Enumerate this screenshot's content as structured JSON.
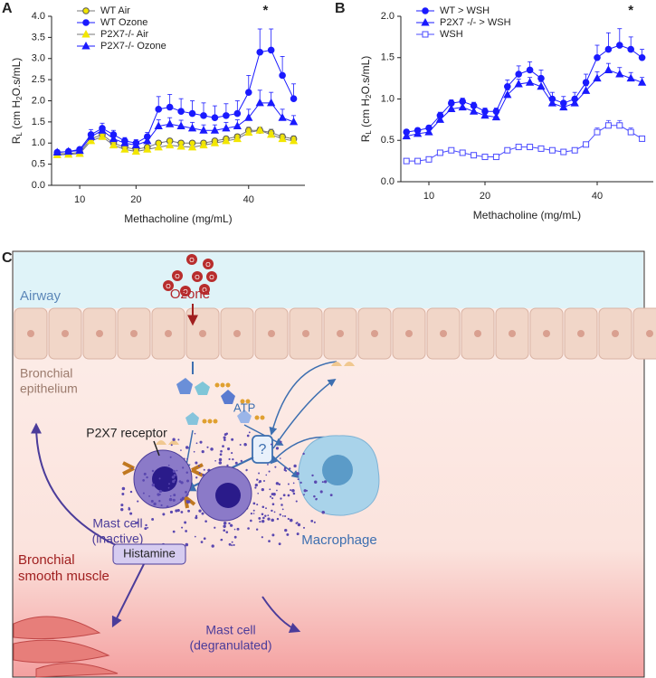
{
  "panels": [
    "A",
    "B",
    "C"
  ],
  "chart_data": [
    {
      "type": "line",
      "xlabel": "Methacholine (mg/mL)",
      "ylabel_parts": [
        "R",
        "L",
        " (cm H",
        "2",
        "O.s/mL)"
      ],
      "x": [
        6,
        8,
        10,
        12,
        14,
        16,
        18,
        20,
        22,
        24,
        26,
        28,
        30,
        32,
        34,
        36,
        38,
        40,
        42,
        44,
        46,
        48
      ],
      "xlim": [
        5,
        50
      ],
      "xticks": [
        10,
        20,
        40
      ],
      "ylim": [
        0,
        4
      ],
      "yticks": [
        {
          "value": 0,
          "label": "0.0"
        },
        0.5,
        {
          "value": 1,
          "label": "1.0"
        },
        1.5,
        {
          "value": 2,
          "label": "2.0"
        },
        2.5,
        {
          "value": 3,
          "label": "3.0"
        },
        3.5,
        {
          "value": 4,
          "label": "4.0"
        }
      ],
      "legend": "upper left",
      "annotations": [
        {
          "text": "*",
          "x": 43
        }
      ],
      "series": [
        {
          "name": "WT Air",
          "color": "#f2e600",
          "marker": "circle",
          "filled": true,
          "values": [
            0.75,
            0.75,
            0.78,
            1.1,
            1.2,
            1.0,
            0.9,
            0.85,
            0.9,
            1.0,
            1.05,
            1.0,
            1.0,
            1.0,
            1.05,
            1.1,
            1.15,
            1.3,
            1.3,
            1.25,
            1.15,
            1.1
          ],
          "errors": [
            0.04,
            0.04,
            0.04,
            0.08,
            0.08,
            0.06,
            0.05,
            0.05,
            0.05,
            0.06,
            0.06,
            0.06,
            0.06,
            0.06,
            0.06,
            0.06,
            0.06,
            0.08,
            0.08,
            0.08,
            0.07,
            0.07
          ]
        },
        {
          "name": "WT Ozone",
          "color": "#1a1aff",
          "marker": "circle",
          "filled": true,
          "values": [
            0.78,
            0.8,
            0.85,
            1.2,
            1.35,
            1.2,
            1.05,
            1.0,
            1.15,
            1.8,
            1.85,
            1.75,
            1.7,
            1.65,
            1.6,
            1.65,
            1.7,
            2.2,
            3.15,
            3.2,
            2.6,
            2.05
          ],
          "errors": [
            0.05,
            0.05,
            0.05,
            0.12,
            0.12,
            0.1,
            0.08,
            0.08,
            0.1,
            0.3,
            0.3,
            0.3,
            0.3,
            0.3,
            0.28,
            0.28,
            0.3,
            0.4,
            0.55,
            0.5,
            0.45,
            0.35
          ]
        },
        {
          "name": "P2X7-/- Air",
          "color": "#f2e600",
          "marker": "triangle",
          "filled": true,
          "values": [
            0.72,
            0.73,
            0.75,
            1.05,
            1.15,
            0.95,
            0.85,
            0.8,
            0.85,
            0.9,
            0.95,
            0.92,
            0.9,
            0.95,
            1.0,
            1.05,
            1.1,
            1.25,
            1.3,
            1.2,
            1.1,
            1.05
          ],
          "errors": [
            0.04,
            0.04,
            0.04,
            0.07,
            0.07,
            0.05,
            0.05,
            0.05,
            0.05,
            0.05,
            0.05,
            0.05,
            0.05,
            0.05,
            0.05,
            0.06,
            0.06,
            0.07,
            0.08,
            0.07,
            0.06,
            0.06
          ]
        },
        {
          "name": "P2X7-/- Ozone",
          "color": "#1a1aff",
          "marker": "triangle",
          "filled": true,
          "values": [
            0.78,
            0.8,
            0.82,
            1.15,
            1.3,
            1.1,
            1.0,
            0.95,
            1.05,
            1.4,
            1.45,
            1.4,
            1.35,
            1.3,
            1.3,
            1.35,
            1.4,
            1.6,
            1.95,
            1.95,
            1.6,
            1.5
          ],
          "errors": [
            0.05,
            0.05,
            0.05,
            0.1,
            0.1,
            0.08,
            0.07,
            0.07,
            0.08,
            0.15,
            0.15,
            0.14,
            0.14,
            0.13,
            0.13,
            0.14,
            0.15,
            0.2,
            0.3,
            0.25,
            0.2,
            0.15
          ]
        }
      ]
    },
    {
      "type": "line",
      "xlabel": "Methacholine (mg/mL)",
      "ylabel_parts": [
        "R",
        "L",
        " (cm H",
        "2",
        "O.s/mL)"
      ],
      "x": [
        6,
        8,
        10,
        12,
        14,
        16,
        18,
        20,
        22,
        24,
        26,
        28,
        30,
        32,
        34,
        36,
        38,
        40,
        42,
        44,
        46,
        48
      ],
      "xlim": [
        5,
        50
      ],
      "xticks": [
        10,
        20,
        40
      ],
      "ylim": [
        0,
        2
      ],
      "yticks": [
        {
          "value": 0,
          "label": "0.0"
        },
        0.5,
        {
          "value": 1,
          "label": "1.0"
        },
        1.5,
        {
          "value": 2,
          "label": "2.0"
        }
      ],
      "legend": "upper left",
      "annotations": [
        {
          "text": "*",
          "x": 46
        }
      ],
      "series": [
        {
          "name": "WT > WSH",
          "color": "#1a1aff",
          "marker": "circle",
          "filled": true,
          "values": [
            0.6,
            0.62,
            0.65,
            0.8,
            0.95,
            0.97,
            0.92,
            0.85,
            0.85,
            1.15,
            1.3,
            1.35,
            1.25,
            1.0,
            0.95,
            1.0,
            1.2,
            1.5,
            1.6,
            1.65,
            1.6,
            1.5
          ],
          "errors": [
            0.03,
            0.03,
            0.03,
            0.04,
            0.04,
            0.04,
            0.04,
            0.04,
            0.04,
            0.08,
            0.1,
            0.1,
            0.1,
            0.08,
            0.08,
            0.08,
            0.1,
            0.15,
            0.2,
            0.2,
            0.15,
            0.1
          ]
        },
        {
          "name": "P2X7 -/- > WSH",
          "color": "#1a1aff",
          "marker": "triangle",
          "filled": true,
          "values": [
            0.55,
            0.58,
            0.6,
            0.75,
            0.88,
            0.9,
            0.85,
            0.8,
            0.78,
            1.05,
            1.18,
            1.2,
            1.15,
            0.95,
            0.9,
            0.95,
            1.1,
            1.25,
            1.35,
            1.3,
            1.25,
            1.2
          ],
          "errors": [
            0.03,
            0.03,
            0.03,
            0.04,
            0.04,
            0.04,
            0.04,
            0.04,
            0.04,
            0.06,
            0.06,
            0.06,
            0.06,
            0.05,
            0.05,
            0.05,
            0.06,
            0.08,
            0.08,
            0.08,
            0.07,
            0.06
          ]
        },
        {
          "name": "WSH",
          "color": "#4a4aff",
          "marker": "square",
          "filled": false,
          "values": [
            0.25,
            0.25,
            0.27,
            0.35,
            0.38,
            0.35,
            0.32,
            0.3,
            0.3,
            0.38,
            0.42,
            0.42,
            0.4,
            0.38,
            0.36,
            0.38,
            0.45,
            0.6,
            0.68,
            0.68,
            0.6,
            0.52
          ],
          "errors": [
            0.01,
            0.01,
            0.01,
            0.02,
            0.02,
            0.02,
            0.02,
            0.02,
            0.02,
            0.02,
            0.02,
            0.02,
            0.02,
            0.02,
            0.02,
            0.02,
            0.03,
            0.05,
            0.06,
            0.06,
            0.05,
            0.03
          ]
        }
      ]
    }
  ],
  "diagram": {
    "ozone": "Ozone",
    "ozone_atom": "O",
    "airway": "Airway",
    "epithelium": [
      "Bronchial",
      "epithelium"
    ],
    "atp": "ATP",
    "unknown": "?",
    "receptor": "P2X7 receptor",
    "mast_inactive": [
      "Mast cell",
      "(inactive)"
    ],
    "macrophage": "Macrophage",
    "histamine": "Histamine",
    "smooth_muscle": [
      "Bronchial",
      "smooth muscle"
    ],
    "mast_degranulated": [
      "Mast cell",
      "(degranulated)"
    ]
  }
}
